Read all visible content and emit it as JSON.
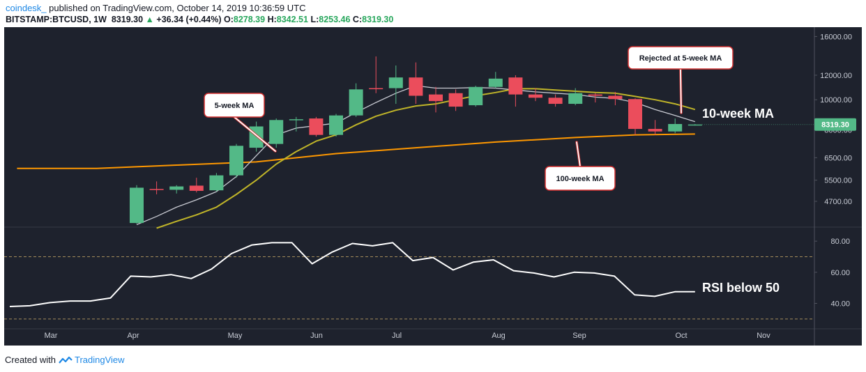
{
  "header": {
    "author": "coindesk_",
    "published": "published on TradingView.com, October 14, 2019 10:36:59 UTC",
    "symbol": "BITSTAMP:BTCUSD, 1W",
    "last": "8319.30",
    "change_arrow": "▲",
    "change": "+36.34 (+0.44%)",
    "open_label": "O:",
    "open": "8278.39",
    "high_label": "H:",
    "high": "8342.51",
    "low_label": "L:",
    "low": "8253.46",
    "close_label": "C:",
    "close": "8319.30"
  },
  "footer": {
    "created_with": "Created with",
    "brand": "TradingView"
  },
  "colors": {
    "background": "#1e222d",
    "up": "#53b987",
    "down": "#eb4d5c",
    "ma5": "#c9cbd3",
    "ma10": "#c0b529",
    "ma100": "#ff9800",
    "rsi": "#ffffff",
    "price_tag": "#53b987"
  },
  "chart_data": [
    {
      "type": "candlestick",
      "title": "BITSTAMP:BTCUSD, 1W",
      "y_scale": "log",
      "ylim": [
        3900,
        16800
      ],
      "y_ticks": [
        4700,
        5500,
        6500,
        8000,
        10000,
        12000,
        16000
      ],
      "y_tick_labels": [
        "4700.00",
        "5500.00",
        "6500.00",
        "8000.00",
        "10000.00",
        "12000.00",
        "16000.00"
      ],
      "x_months": [
        "Mar",
        "Apr",
        "May",
        "Jun",
        "Jul",
        "Aug",
        "Sep",
        "Oct",
        "Nov"
      ],
      "last_price_label": "8319.30",
      "candles": [
        {
          "o": 4000,
          "h": 5300,
          "l": 3980,
          "c": 5200
        },
        {
          "o": 5150,
          "h": 5450,
          "l": 4950,
          "c": 5120
        },
        {
          "o": 5120,
          "h": 5300,
          "l": 4980,
          "c": 5250
        },
        {
          "o": 5280,
          "h": 5600,
          "l": 5020,
          "c": 5080
        },
        {
          "o": 5100,
          "h": 5800,
          "l": 5050,
          "c": 5700
        },
        {
          "o": 5700,
          "h": 7200,
          "l": 5600,
          "c": 7100
        },
        {
          "o": 7000,
          "h": 8500,
          "l": 6800,
          "c": 8200
        },
        {
          "o": 7200,
          "h": 8700,
          "l": 7000,
          "c": 8600
        },
        {
          "o": 8600,
          "h": 8800,
          "l": 7900,
          "c": 8650
        },
        {
          "o": 8700,
          "h": 8800,
          "l": 7600,
          "c": 7700
        },
        {
          "o": 7700,
          "h": 9000,
          "l": 7600,
          "c": 8900
        },
        {
          "o": 8900,
          "h": 11300,
          "l": 8800,
          "c": 10800
        },
        {
          "o": 10900,
          "h": 13800,
          "l": 10500,
          "c": 10850
        },
        {
          "o": 10900,
          "h": 12900,
          "l": 9700,
          "c": 11800
        },
        {
          "o": 11800,
          "h": 13200,
          "l": 9700,
          "c": 10300
        },
        {
          "o": 10400,
          "h": 11000,
          "l": 9100,
          "c": 9900
        },
        {
          "o": 10500,
          "h": 10800,
          "l": 9200,
          "c": 9500
        },
        {
          "o": 9600,
          "h": 11100,
          "l": 9500,
          "c": 11000
        },
        {
          "o": 11000,
          "h": 12300,
          "l": 10900,
          "c": 11700
        },
        {
          "o": 11800,
          "h": 12000,
          "l": 9500,
          "c": 10400
        },
        {
          "o": 10400,
          "h": 10900,
          "l": 9900,
          "c": 10150
        },
        {
          "o": 10150,
          "h": 10400,
          "l": 9500,
          "c": 9700
        },
        {
          "o": 9700,
          "h": 10900,
          "l": 9600,
          "c": 10500
        },
        {
          "o": 10400,
          "h": 10500,
          "l": 9800,
          "c": 10300
        },
        {
          "o": 10300,
          "h": 10600,
          "l": 9600,
          "c": 10050
        },
        {
          "o": 10050,
          "h": 10100,
          "l": 7700,
          "c": 8050
        },
        {
          "o": 8050,
          "h": 8600,
          "l": 7700,
          "c": 7900
        },
        {
          "o": 7900,
          "h": 8700,
          "l": 7800,
          "c": 8350
        },
        {
          "o": 8278.39,
          "h": 8342.51,
          "l": 8253.46,
          "c": 8319.3
        }
      ],
      "ma5": [
        {
          "i": 0,
          "v": 3950
        },
        {
          "i": 1,
          "v": 4200
        },
        {
          "i": 2,
          "v": 4500
        },
        {
          "i": 3,
          "v": 4750
        },
        {
          "i": 4,
          "v": 5050
        },
        {
          "i": 5,
          "v": 5650
        },
        {
          "i": 6,
          "v": 6600
        },
        {
          "i": 7,
          "v": 7700
        },
        {
          "i": 8,
          "v": 8100
        },
        {
          "i": 9,
          "v": 8250
        },
        {
          "i": 10,
          "v": 8400
        },
        {
          "i": 11,
          "v": 9100
        },
        {
          "i": 12,
          "v": 9800
        },
        {
          "i": 13,
          "v": 10500
        },
        {
          "i": 14,
          "v": 11100
        },
        {
          "i": 15,
          "v": 10900
        },
        {
          "i": 16,
          "v": 10900
        },
        {
          "i": 17,
          "v": 10950
        },
        {
          "i": 18,
          "v": 10900
        },
        {
          "i": 19,
          "v": 10750
        },
        {
          "i": 20,
          "v": 10600
        },
        {
          "i": 21,
          "v": 10500
        },
        {
          "i": 22,
          "v": 10400
        },
        {
          "i": 23,
          "v": 10200
        },
        {
          "i": 24,
          "v": 10100
        },
        {
          "i": 25,
          "v": 9800
        },
        {
          "i": 26,
          "v": 9300
        },
        {
          "i": 27,
          "v": 8900
        },
        {
          "i": 28,
          "v": 8500
        }
      ],
      "ma10": [
        {
          "i": 1,
          "v": 3850
        },
        {
          "i": 2,
          "v": 4050
        },
        {
          "i": 3,
          "v": 4250
        },
        {
          "i": 4,
          "v": 4500
        },
        {
          "i": 5,
          "v": 4950
        },
        {
          "i": 6,
          "v": 5500
        },
        {
          "i": 7,
          "v": 6200
        },
        {
          "i": 8,
          "v": 6800
        },
        {
          "i": 9,
          "v": 7350
        },
        {
          "i": 10,
          "v": 7700
        },
        {
          "i": 11,
          "v": 8300
        },
        {
          "i": 12,
          "v": 8850
        },
        {
          "i": 13,
          "v": 9250
        },
        {
          "i": 14,
          "v": 9550
        },
        {
          "i": 15,
          "v": 9700
        },
        {
          "i": 16,
          "v": 10000
        },
        {
          "i": 17,
          "v": 10300
        },
        {
          "i": 18,
          "v": 10550
        },
        {
          "i": 19,
          "v": 10850
        },
        {
          "i": 20,
          "v": 10850
        },
        {
          "i": 21,
          "v": 10750
        },
        {
          "i": 22,
          "v": 10650
        },
        {
          "i": 23,
          "v": 10550
        },
        {
          "i": 24,
          "v": 10500
        },
        {
          "i": 25,
          "v": 10250
        },
        {
          "i": 26,
          "v": 10000
        },
        {
          "i": 27,
          "v": 9700
        },
        {
          "i": 28,
          "v": 9300
        }
      ],
      "ma100": [
        {
          "i": -6,
          "v": 6000
        },
        {
          "i": -2,
          "v": 6000
        },
        {
          "i": 2,
          "v": 6150
        },
        {
          "i": 6,
          "v": 6300
        },
        {
          "i": 10,
          "v": 6700
        },
        {
          "i": 14,
          "v": 7000
        },
        {
          "i": 18,
          "v": 7300
        },
        {
          "i": 22,
          "v": 7550
        },
        {
          "i": 25,
          "v": 7700
        },
        {
          "i": 28,
          "v": 7750
        }
      ],
      "annotations": [
        {
          "text": "5-week MA"
        },
        {
          "text": "Rejected at 5-week MA"
        },
        {
          "text": "10-week MA"
        },
        {
          "text": "100-week MA"
        }
      ]
    },
    {
      "type": "line",
      "title": "RSI",
      "ylim": [
        25,
        85
      ],
      "y_ticks": [
        40,
        60,
        80
      ],
      "y_tick_labels": [
        "40.00",
        "60.00",
        "80.00"
      ],
      "bands": [
        30,
        70
      ],
      "series": [
        {
          "values": [
            38,
            38.5,
            40.5,
            41.5,
            41.5,
            43.5,
            57.5,
            57,
            58.5,
            56,
            62,
            72,
            77.5,
            79,
            79,
            65.5,
            73,
            78.5,
            77,
            79,
            67.5,
            69.5,
            61.5,
            66.5,
            68,
            61,
            59.5,
            57,
            60,
            59.5,
            57.5,
            45.5,
            44.5,
            47.5,
            47.5
          ]
        }
      ],
      "annotations": [
        {
          "text": "RSI below 50"
        }
      ]
    }
  ]
}
